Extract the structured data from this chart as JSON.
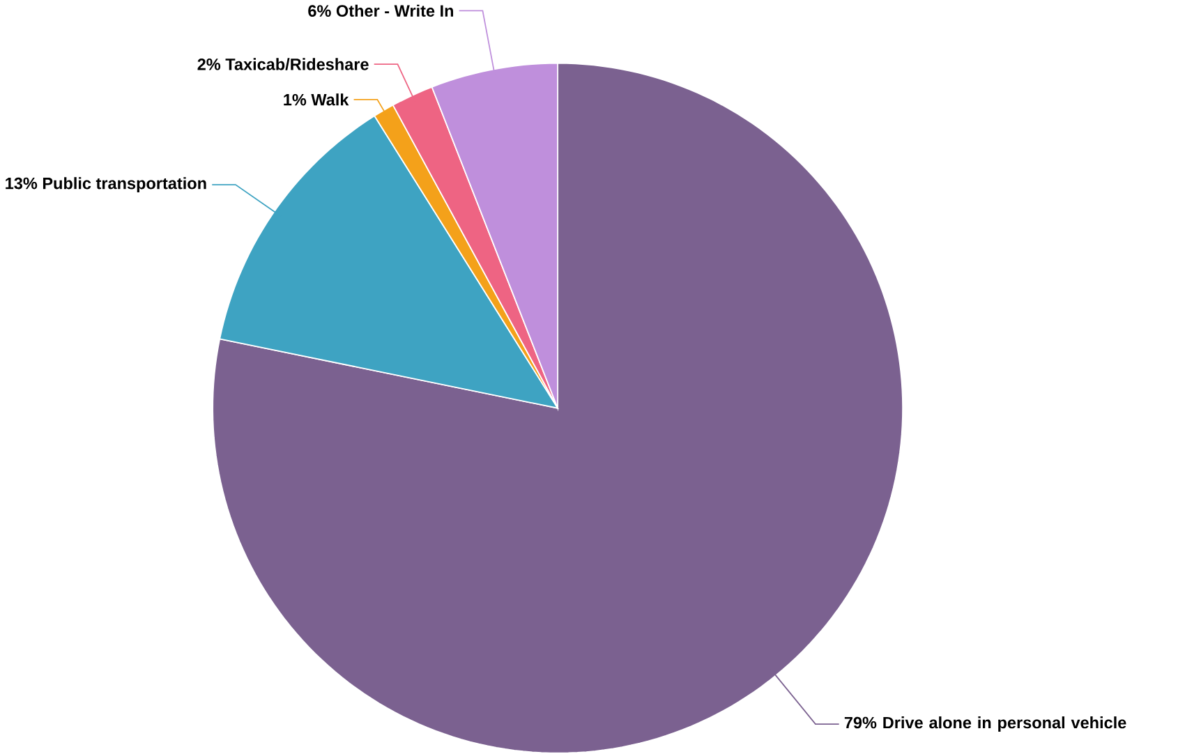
{
  "chart_data": {
    "type": "pie",
    "categories": [
      "Drive alone in personal vehicle",
      "Public transportation",
      "Walk",
      "Taxicab/Rideshare",
      "Other - Write In"
    ],
    "values": [
      79,
      13,
      1,
      2,
      6
    ],
    "value_labels": [
      "79%",
      "13%",
      "1%",
      "2%",
      "6%"
    ],
    "colors": [
      "#7b6190",
      "#3ea3c2",
      "#f4a11a",
      "#ee6483",
      "#bf8fdc"
    ]
  }
}
